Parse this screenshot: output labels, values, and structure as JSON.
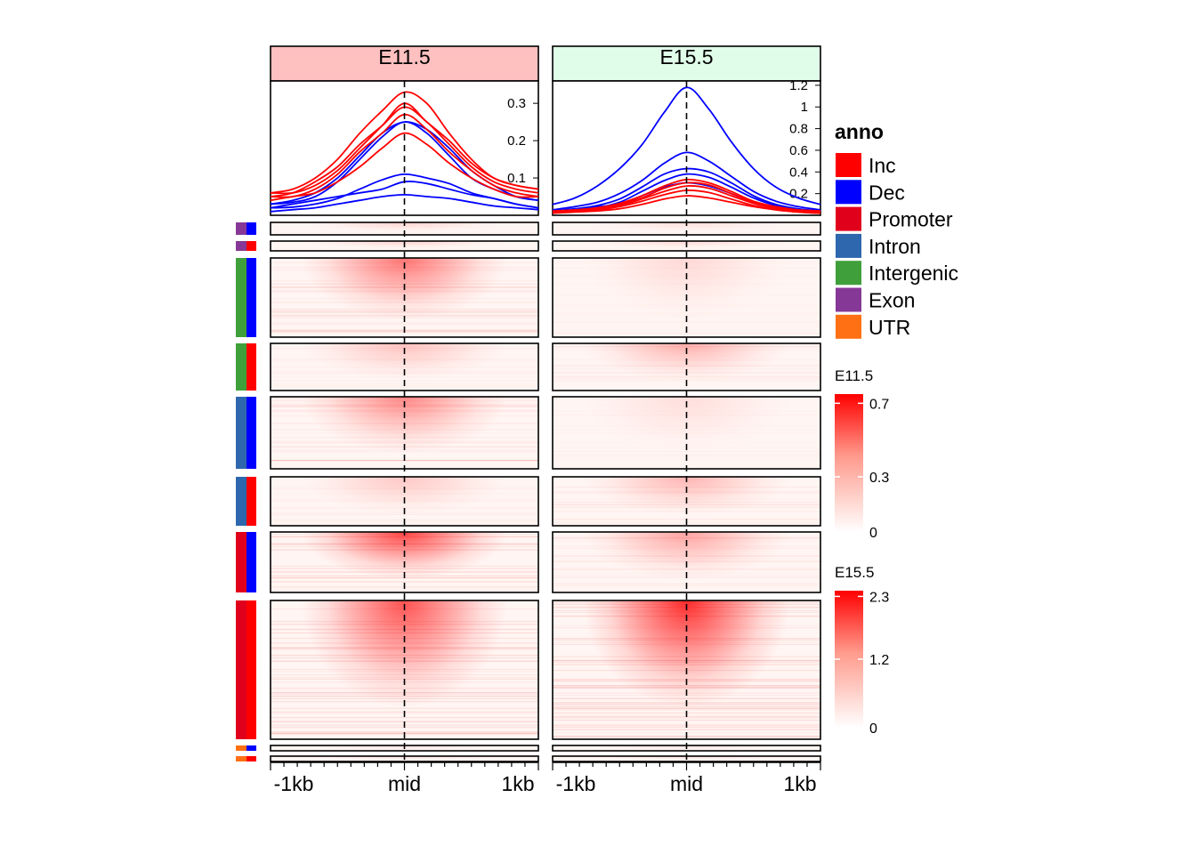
{
  "chart_data": {
    "type": "heatmap",
    "panels": [
      "E11.5",
      "E15.5"
    ],
    "header_colors": {
      "E11.5": "#ffc0c0",
      "E15.5": "#e0fde9"
    },
    "x_ticks": [
      "-1kb",
      "mid",
      "1kb"
    ],
    "profile": {
      "E11.5": {
        "ylim": [
          0,
          0.36
        ],
        "ticks": [
          "0.1",
          "0.2",
          "0.3"
        ],
        "tick_values": [
          0.1,
          0.2,
          0.3
        ],
        "lines": [
          {
            "group": "Exon-Dec",
            "color": "#0000ff",
            "values": [
              0.02,
              0.022,
              0.03,
              0.045,
              0.07,
              0.095,
              0.11,
              0.1,
              0.085,
              0.06,
              0.045,
              0.03,
              0.02
            ]
          },
          {
            "group": "Exon-Inc",
            "color": "#ff0000",
            "values": [
              0.06,
              0.07,
              0.1,
              0.15,
              0.22,
              0.28,
              0.33,
              0.3,
              0.22,
              0.15,
              0.1,
              0.08,
              0.07
            ]
          },
          {
            "group": "Intergenic-Dec",
            "color": "#0000ff",
            "values": [
              0.03,
              0.04,
              0.06,
              0.1,
              0.16,
              0.22,
              0.25,
              0.23,
              0.18,
              0.12,
              0.08,
              0.05,
              0.04
            ]
          },
          {
            "group": "Intergenic-Inc",
            "color": "#ff0000",
            "values": [
              0.06,
              0.06,
              0.08,
              0.12,
              0.18,
              0.24,
              0.3,
              0.25,
              0.2,
              0.14,
              0.1,
              0.08,
              0.07
            ]
          },
          {
            "group": "Intron-Dec",
            "color": "#0000ff",
            "values": [
              0.02,
              0.03,
              0.04,
              0.05,
              0.06,
              0.07,
              0.09,
              0.085,
              0.07,
              0.055,
              0.045,
              0.03,
              0.02
            ]
          },
          {
            "group": "Intron-Inc",
            "color": "#ff0000",
            "values": [
              0.05,
              0.05,
              0.07,
              0.11,
              0.17,
              0.22,
              0.27,
              0.23,
              0.17,
              0.12,
              0.08,
              0.06,
              0.05
            ]
          },
          {
            "group": "Promoter-Dec",
            "color": "#0000ff",
            "values": [
              0.03,
              0.035,
              0.05,
              0.09,
              0.15,
              0.21,
              0.25,
              0.22,
              0.16,
              0.1,
              0.07,
              0.05,
              0.04
            ]
          },
          {
            "group": "Promoter-Inc",
            "color": "#ff0000",
            "values": [
              0.05,
              0.06,
              0.09,
              0.13,
              0.19,
              0.24,
              0.29,
              0.25,
              0.19,
              0.13,
              0.09,
              0.07,
              0.06
            ]
          },
          {
            "group": "UTR-Dec",
            "color": "#0000ff",
            "values": [
              0.01,
              0.015,
              0.02,
              0.03,
              0.04,
              0.05,
              0.055,
              0.05,
              0.045,
              0.035,
              0.025,
              0.02,
              0.015
            ]
          },
          {
            "group": "UTR-Inc",
            "color": "#ff0000",
            "values": [
              0.04,
              0.05,
              0.06,
              0.09,
              0.13,
              0.18,
              0.22,
              0.19,
              0.14,
              0.1,
              0.07,
              0.05,
              0.05
            ]
          }
        ]
      },
      "E15.5": {
        "ylim": [
          0,
          1.24
        ],
        "ticks": [
          "0.2",
          "0.4",
          "0.6",
          "0.8",
          "1",
          "1.2"
        ],
        "tick_values": [
          0.2,
          0.4,
          0.6,
          0.8,
          1.0,
          1.2
        ],
        "lines": [
          {
            "group": "Promoter-Inc",
            "color": "#0000ff",
            "values": [
              0.1,
              0.16,
              0.27,
              0.43,
              0.65,
              0.95,
              1.18,
              0.98,
              0.68,
              0.43,
              0.26,
              0.16,
              0.1
            ]
          },
          {
            "group": "Promoter-Dec",
            "color": "#0000ff",
            "values": [
              0.05,
              0.08,
              0.12,
              0.2,
              0.32,
              0.48,
              0.58,
              0.5,
              0.36,
              0.22,
              0.13,
              0.08,
              0.05
            ]
          },
          {
            "group": "Intron-Dec",
            "color": "#0000ff",
            "values": [
              0.04,
              0.06,
              0.09,
              0.15,
              0.26,
              0.38,
              0.43,
              0.4,
              0.3,
              0.18,
              0.1,
              0.06,
              0.04
            ]
          },
          {
            "group": "Intergenic-Dec",
            "color": "#0000ff",
            "values": [
              0.04,
              0.05,
              0.07,
              0.12,
              0.22,
              0.32,
              0.38,
              0.35,
              0.26,
              0.16,
              0.09,
              0.05,
              0.04
            ]
          },
          {
            "group": "Exon-Dec",
            "color": "#0000ff",
            "values": [
              0.03,
              0.05,
              0.08,
              0.1,
              0.18,
              0.26,
              0.3,
              0.27,
              0.2,
              0.12,
              0.07,
              0.04,
              0.03
            ]
          },
          {
            "group": "Intergenic-Inc",
            "color": "#ff0000",
            "values": [
              0.04,
              0.05,
              0.07,
              0.11,
              0.18,
              0.27,
              0.33,
              0.3,
              0.22,
              0.13,
              0.08,
              0.05,
              0.04
            ]
          },
          {
            "group": "Intron-Inc",
            "color": "#ff0000",
            "values": [
              0.03,
              0.04,
              0.06,
              0.1,
              0.16,
              0.25,
              0.3,
              0.28,
              0.2,
              0.12,
              0.07,
              0.04,
              0.03
            ]
          },
          {
            "group": "Exon-Inc",
            "color": "#ff0000",
            "values": [
              0.03,
              0.04,
              0.06,
              0.09,
              0.15,
              0.22,
              0.27,
              0.25,
              0.18,
              0.11,
              0.06,
              0.04,
              0.03
            ]
          },
          {
            "group": "Promoter-Inc-2",
            "color": "#ff0000",
            "values": [
              0.03,
              0.04,
              0.05,
              0.08,
              0.13,
              0.19,
              0.23,
              0.21,
              0.15,
              0.09,
              0.05,
              0.03,
              0.02
            ]
          },
          {
            "group": "UTR-Inc",
            "color": "#ff0000",
            "values": [
              0.02,
              0.03,
              0.04,
              0.06,
              0.1,
              0.15,
              0.18,
              0.16,
              0.12,
              0.08,
              0.05,
              0.03,
              0.02
            ]
          }
        ]
      }
    },
    "groups": [
      {
        "anno": "Exon",
        "dir": "Dec",
        "rows": 1,
        "intensity": {
          "E11.5": 0.15,
          "E15.5": 0.1
        }
      },
      {
        "anno": "Exon",
        "dir": "Inc",
        "rows": 1,
        "intensity": {
          "E11.5": 0.15,
          "E15.5": 0.12
        }
      },
      {
        "anno": "Intergenic",
        "dir": "Dec",
        "rows": 90,
        "intensity": {
          "E11.5": 0.55,
          "E15.5": 0.12
        }
      },
      {
        "anno": "Intergenic",
        "dir": "Inc",
        "rows": 52,
        "intensity": {
          "E11.5": 0.22,
          "E15.5": 0.3
        }
      },
      {
        "anno": "Intron",
        "dir": "Dec",
        "rows": 81,
        "intensity": {
          "E11.5": 0.45,
          "E15.5": 0.1
        }
      },
      {
        "anno": "Intron",
        "dir": "Inc",
        "rows": 55,
        "intensity": {
          "E11.5": 0.2,
          "E15.5": 0.28
        }
      },
      {
        "anno": "Promoter",
        "dir": "Dec",
        "rows": 68,
        "intensity": {
          "E11.5": 0.75,
          "E15.5": 0.35
        }
      },
      {
        "anno": "Promoter",
        "dir": "Inc",
        "rows": 156,
        "intensity": {
          "E11.5": 0.7,
          "E15.5": 0.85
        }
      },
      {
        "anno": "UTR",
        "dir": "Dec",
        "rows": 1,
        "intensity": {
          "E11.5": 0.1,
          "E15.5": 0.1
        }
      },
      {
        "anno": "UTR",
        "dir": "Inc",
        "rows": 1,
        "intensity": {
          "E11.5": 0.1,
          "E15.5": 0.1
        }
      }
    ],
    "legend": {
      "title": "anno",
      "entries": [
        {
          "label": "Inc",
          "color": "#ff0000"
        },
        {
          "label": "Dec",
          "color": "#0000ff"
        },
        {
          "label": "Promoter",
          "color": "#e0001b"
        },
        {
          "label": "Intron",
          "color": "#2e67ad"
        },
        {
          "label": "Intergenic",
          "color": "#3f9f3a"
        },
        {
          "label": "Exon",
          "color": "#863897"
        },
        {
          "label": "UTR",
          "color": "#ff7014"
        }
      ]
    },
    "color_scales": [
      {
        "title": "E11.5",
        "ticks": [
          "0.7",
          "0.3",
          "0"
        ],
        "tick_values": [
          0.7,
          0.3,
          0
        ],
        "range": [
          0,
          0.75
        ]
      },
      {
        "title": "E15.5",
        "ticks": [
          "2.3",
          "1.2",
          "0"
        ],
        "tick_values": [
          2.3,
          1.2,
          0
        ],
        "range": [
          0,
          2.4
        ]
      }
    ]
  }
}
